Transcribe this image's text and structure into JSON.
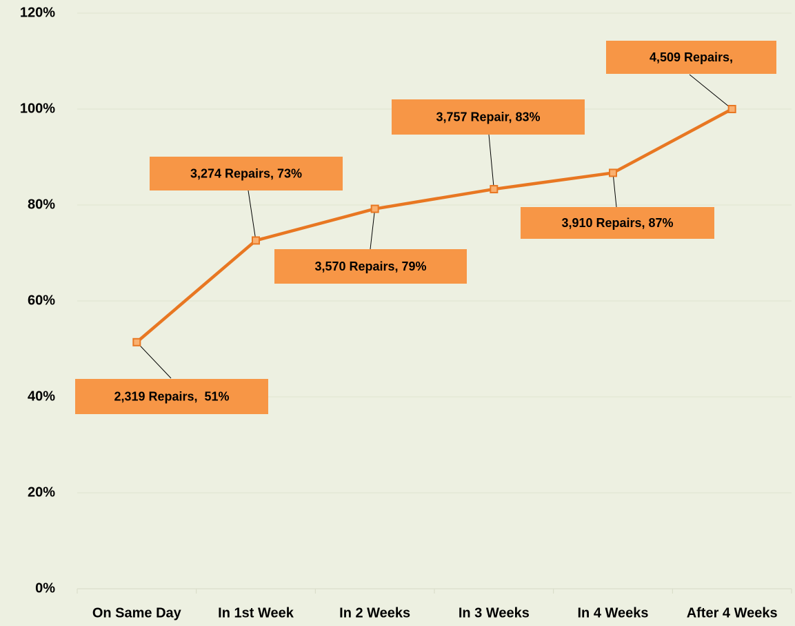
{
  "chart_data": {
    "type": "line",
    "categories": [
      "On Same Day",
      "In 1st Week",
      "In 2 Weeks",
      "In 3 Weeks",
      "In 4 Weeks",
      "After 4 Weeks"
    ],
    "series": [
      {
        "color": "#e87722",
        "values": [
          51.4,
          72.6,
          79.2,
          83.3,
          86.7,
          100
        ],
        "value_labels": [
          "2,319 Repairs,  51%",
          "3,274 Repairs, 73%",
          "3,570 Repairs, 79%",
          "3,757 Repair, 83%",
          "3,910 Repairs, 87%",
          "4,509 Repairs,"
        ]
      }
    ],
    "label_color": "#f79646",
    "ylim": [
      0,
      120
    ],
    "yticks": [
      {
        "value": 0,
        "label": "0%"
      },
      {
        "value": 20,
        "label": "20%"
      },
      {
        "value": 40,
        "label": "40%"
      },
      {
        "value": 60,
        "label": "60%"
      },
      {
        "value": 80,
        "label": "80%"
      },
      {
        "value": 100,
        "label": "100%"
      },
      {
        "value": 120,
        "label": "120%"
      }
    ],
    "grid": true
  }
}
